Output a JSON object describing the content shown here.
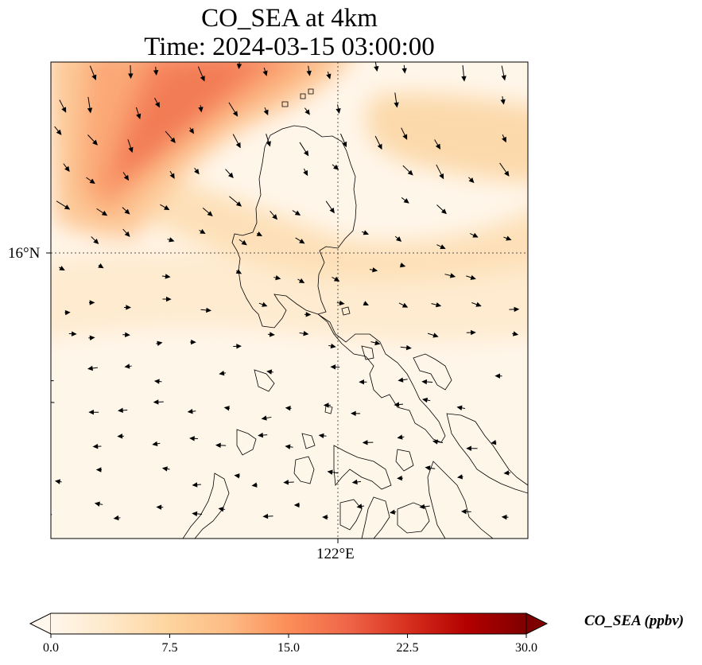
{
  "map": {
    "title_line1": "CO_SEA at 4km",
    "title_line2": "Time: 2024-03-15 03:00:00",
    "lat_gridline_label": "16°N",
    "lon_gridline_label": "122°E",
    "projection_gridlines": "dotted",
    "wind_vectors": "shown"
  },
  "colorbar": {
    "label": "CO_SEA (ppbv)",
    "colormap": "OrRd",
    "min": 0.0,
    "max": 30.0,
    "extend": "both",
    "ticks": [
      "0.0",
      "7.5",
      "15.0",
      "22.5",
      "30.0"
    ],
    "colors": [
      "#fff7ec",
      "#fee8c8",
      "#fdd49e",
      "#fdbb84",
      "#fc8d59",
      "#ef6548",
      "#d7301f",
      "#b30000",
      "#7f0000"
    ]
  }
}
